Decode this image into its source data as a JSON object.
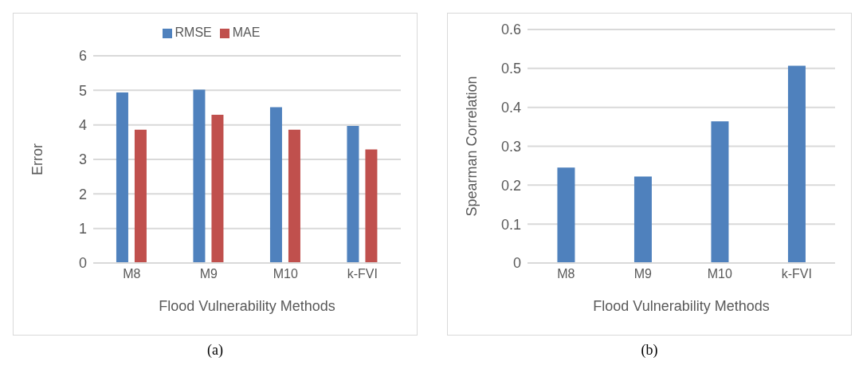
{
  "chart_data": [
    {
      "type": "bar",
      "categories": [
        "M8",
        "M9",
        "M10",
        "k-FVI"
      ],
      "series": [
        {
          "name": "RMSE",
          "color": "#4f81bd",
          "values": [
            4.94,
            5.02,
            4.51,
            3.97
          ]
        },
        {
          "name": "MAE",
          "color": "#c0504d",
          "values": [
            3.86,
            4.29,
            3.86,
            3.29
          ]
        }
      ],
      "xlabel": "Flood Vulnerability Methods",
      "ylabel": "Error",
      "ylim": [
        0,
        6
      ],
      "yticks": [
        0,
        1,
        2,
        3,
        4,
        5,
        6
      ],
      "grid": "y",
      "legend": "top",
      "annotations": [
        "(a)"
      ]
    },
    {
      "type": "bar",
      "categories": [
        "M8",
        "M9",
        "M10",
        "k-FVI"
      ],
      "series": [
        {
          "color": "#4f81bd",
          "values": [
            0.245,
            0.222,
            0.364,
            0.507
          ]
        }
      ],
      "xlabel": "Flood Vulnerability Methods",
      "ylabel": "Spearman Correlation",
      "ylim": [
        0,
        0.6
      ],
      "yticks": [
        0,
        0.1,
        0.2,
        0.3,
        0.4,
        0.5,
        0.6
      ],
      "grid": "y",
      "annotations": [
        "(b)"
      ]
    }
  ]
}
